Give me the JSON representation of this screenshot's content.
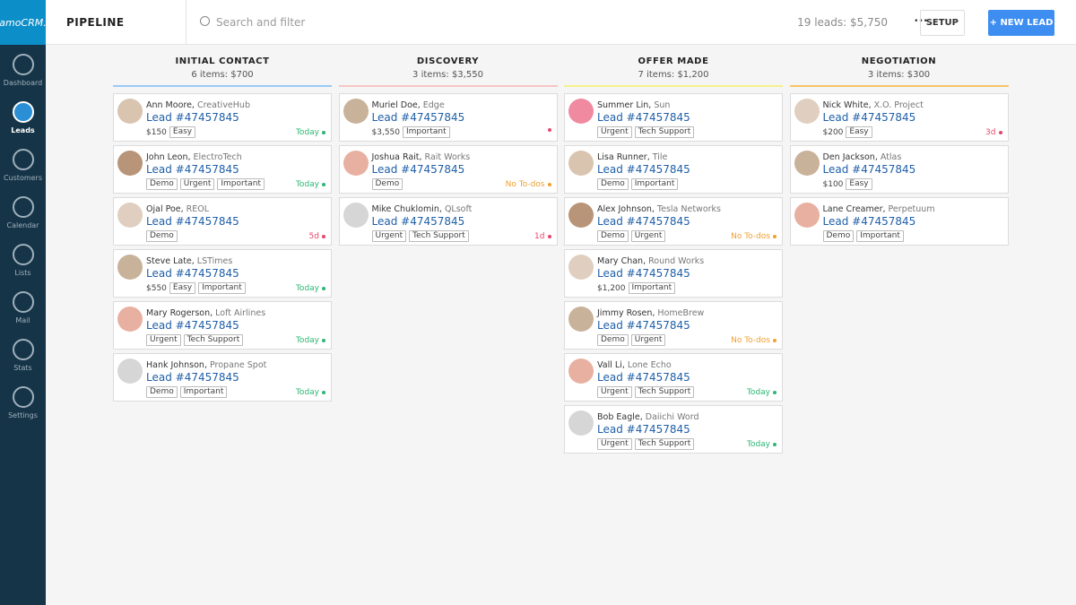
{
  "sidebar": {
    "logo": "amoCRM.",
    "nav": [
      "Dashboard",
      "Leads",
      "Customers",
      "Calendar",
      "Lists",
      "Mail",
      "Stats",
      "Settings"
    ],
    "active": 1
  },
  "header": {
    "title": "PIPELINE",
    "search": "Search and filter",
    "summary": "19 leads: $5,750",
    "more": "•••",
    "setup": "SETUP",
    "new_lead": "+ NEW LEAD"
  },
  "columns": [
    {
      "title": "INITIAL CONTACT",
      "summary": "6 items: $700",
      "color": "#99c9f5",
      "cards": [
        {
          "name": "Ann Moore,",
          "company": "CreativeHub",
          "lead": "Lead #47457845",
          "price": "$150",
          "tags": [
            "Easy"
          ],
          "due": "Today",
          "state": "today"
        },
        {
          "name": "John Leon,",
          "company": "ElectroTech",
          "lead": "Lead #47457845",
          "tags": [
            "Demo",
            "Urgent",
            "Important"
          ],
          "due": "Today",
          "state": "today"
        },
        {
          "name": "Ojal Poe,",
          "company": "REOL",
          "lead": "Lead #47457845",
          "tags": [
            "Demo"
          ],
          "due": "5d",
          "state": "overdue"
        },
        {
          "name": "Steve Late,",
          "company": "LSTimes",
          "lead": "Lead #47457845",
          "price": "$550",
          "tags": [
            "Easy",
            "Important"
          ],
          "due": "Today",
          "state": "today"
        },
        {
          "name": "Mary Rogerson,",
          "company": "Loft Airlines",
          "lead": "Lead #47457845",
          "tags": [
            "Urgent",
            "Tech Support"
          ],
          "due": "Today",
          "state": "today"
        },
        {
          "name": "Hank Johnson,",
          "company": "Propane Spot",
          "lead": "Lead #47457845",
          "tags": [
            "Demo",
            "Important"
          ],
          "due": "Today",
          "state": "today"
        }
      ]
    },
    {
      "title": "DISCOVERY",
      "summary": "3 items: $3,550",
      "color": "#f7c6c6",
      "cards": [
        {
          "name": "Muriel Doe,",
          "company": "Edge",
          "lead": "Lead #47457845",
          "price": "$3,550",
          "tags": [
            "Important"
          ],
          "state": "overdue"
        },
        {
          "name": "Joshua Rait,",
          "company": "Rait Works",
          "lead": "Lead #47457845",
          "tags": [
            "Demo"
          ],
          "due": "No To-dos",
          "state": "none"
        },
        {
          "name": "Mike Chuklomin,",
          "company": "QLsoft",
          "lead": "Lead #47457845",
          "tags": [
            "Urgent",
            "Tech Support"
          ],
          "due": "1d",
          "state": "overdue"
        }
      ]
    },
    {
      "title": "OFFER MADE",
      "summary": "7 items: $1,200",
      "color": "#f5f08a",
      "cards": [
        {
          "name": "Summer Lin,",
          "company": "Sun",
          "lead": "Lead #47457845",
          "tags": [
            "Urgent",
            "Tech Support"
          ]
        },
        {
          "name": "Lisa Runner,",
          "company": "Tile",
          "lead": "Lead #47457845",
          "tags": [
            "Demo",
            "Important"
          ]
        },
        {
          "name": "Alex Johnson,",
          "company": "Tesla Networks",
          "lead": "Lead #47457845",
          "tags": [
            "Demo",
            "Urgent"
          ],
          "due": "No To-dos",
          "state": "none"
        },
        {
          "name": "Mary Chan,",
          "company": "Round Works",
          "lead": "Lead #47457845",
          "price": "$1,200",
          "tags": [
            "Important"
          ]
        },
        {
          "name": "Jimmy Rosen,",
          "company": "HomeBrew",
          "lead": "Lead #47457845",
          "tags": [
            "Demo",
            "Urgent"
          ],
          "due": "No To-dos",
          "state": "none"
        },
        {
          "name": "Vall Li,",
          "company": "Lone Echo",
          "lead": "Lead #47457845",
          "tags": [
            "Urgent",
            "Tech Support"
          ],
          "due": "Today",
          "state": "today"
        },
        {
          "name": "Bob Eagle,",
          "company": "Daiichi Word",
          "lead": "Lead #47457845",
          "tags": [
            "Urgent",
            "Tech Support"
          ],
          "due": "Today",
          "state": "today"
        }
      ]
    },
    {
      "title": "NEGOTIATION",
      "summary": "3 items: $300",
      "color": "#f6c46a",
      "cards": [
        {
          "name": "Nick White,",
          "company": "X.O. Project",
          "lead": "Lead #47457845",
          "price": "$200",
          "tags": [
            "Easy"
          ],
          "due": "3d",
          "state": "overdue"
        },
        {
          "name": "Den Jackson,",
          "company": "Atlas",
          "lead": "Lead #47457845",
          "price": "$100",
          "tags": [
            "Easy"
          ]
        },
        {
          "name": "Lane Creamer,",
          "company": "Perpetuum",
          "lead": "Lead #47457845",
          "tags": [
            "Demo",
            "Important"
          ]
        }
      ]
    }
  ]
}
